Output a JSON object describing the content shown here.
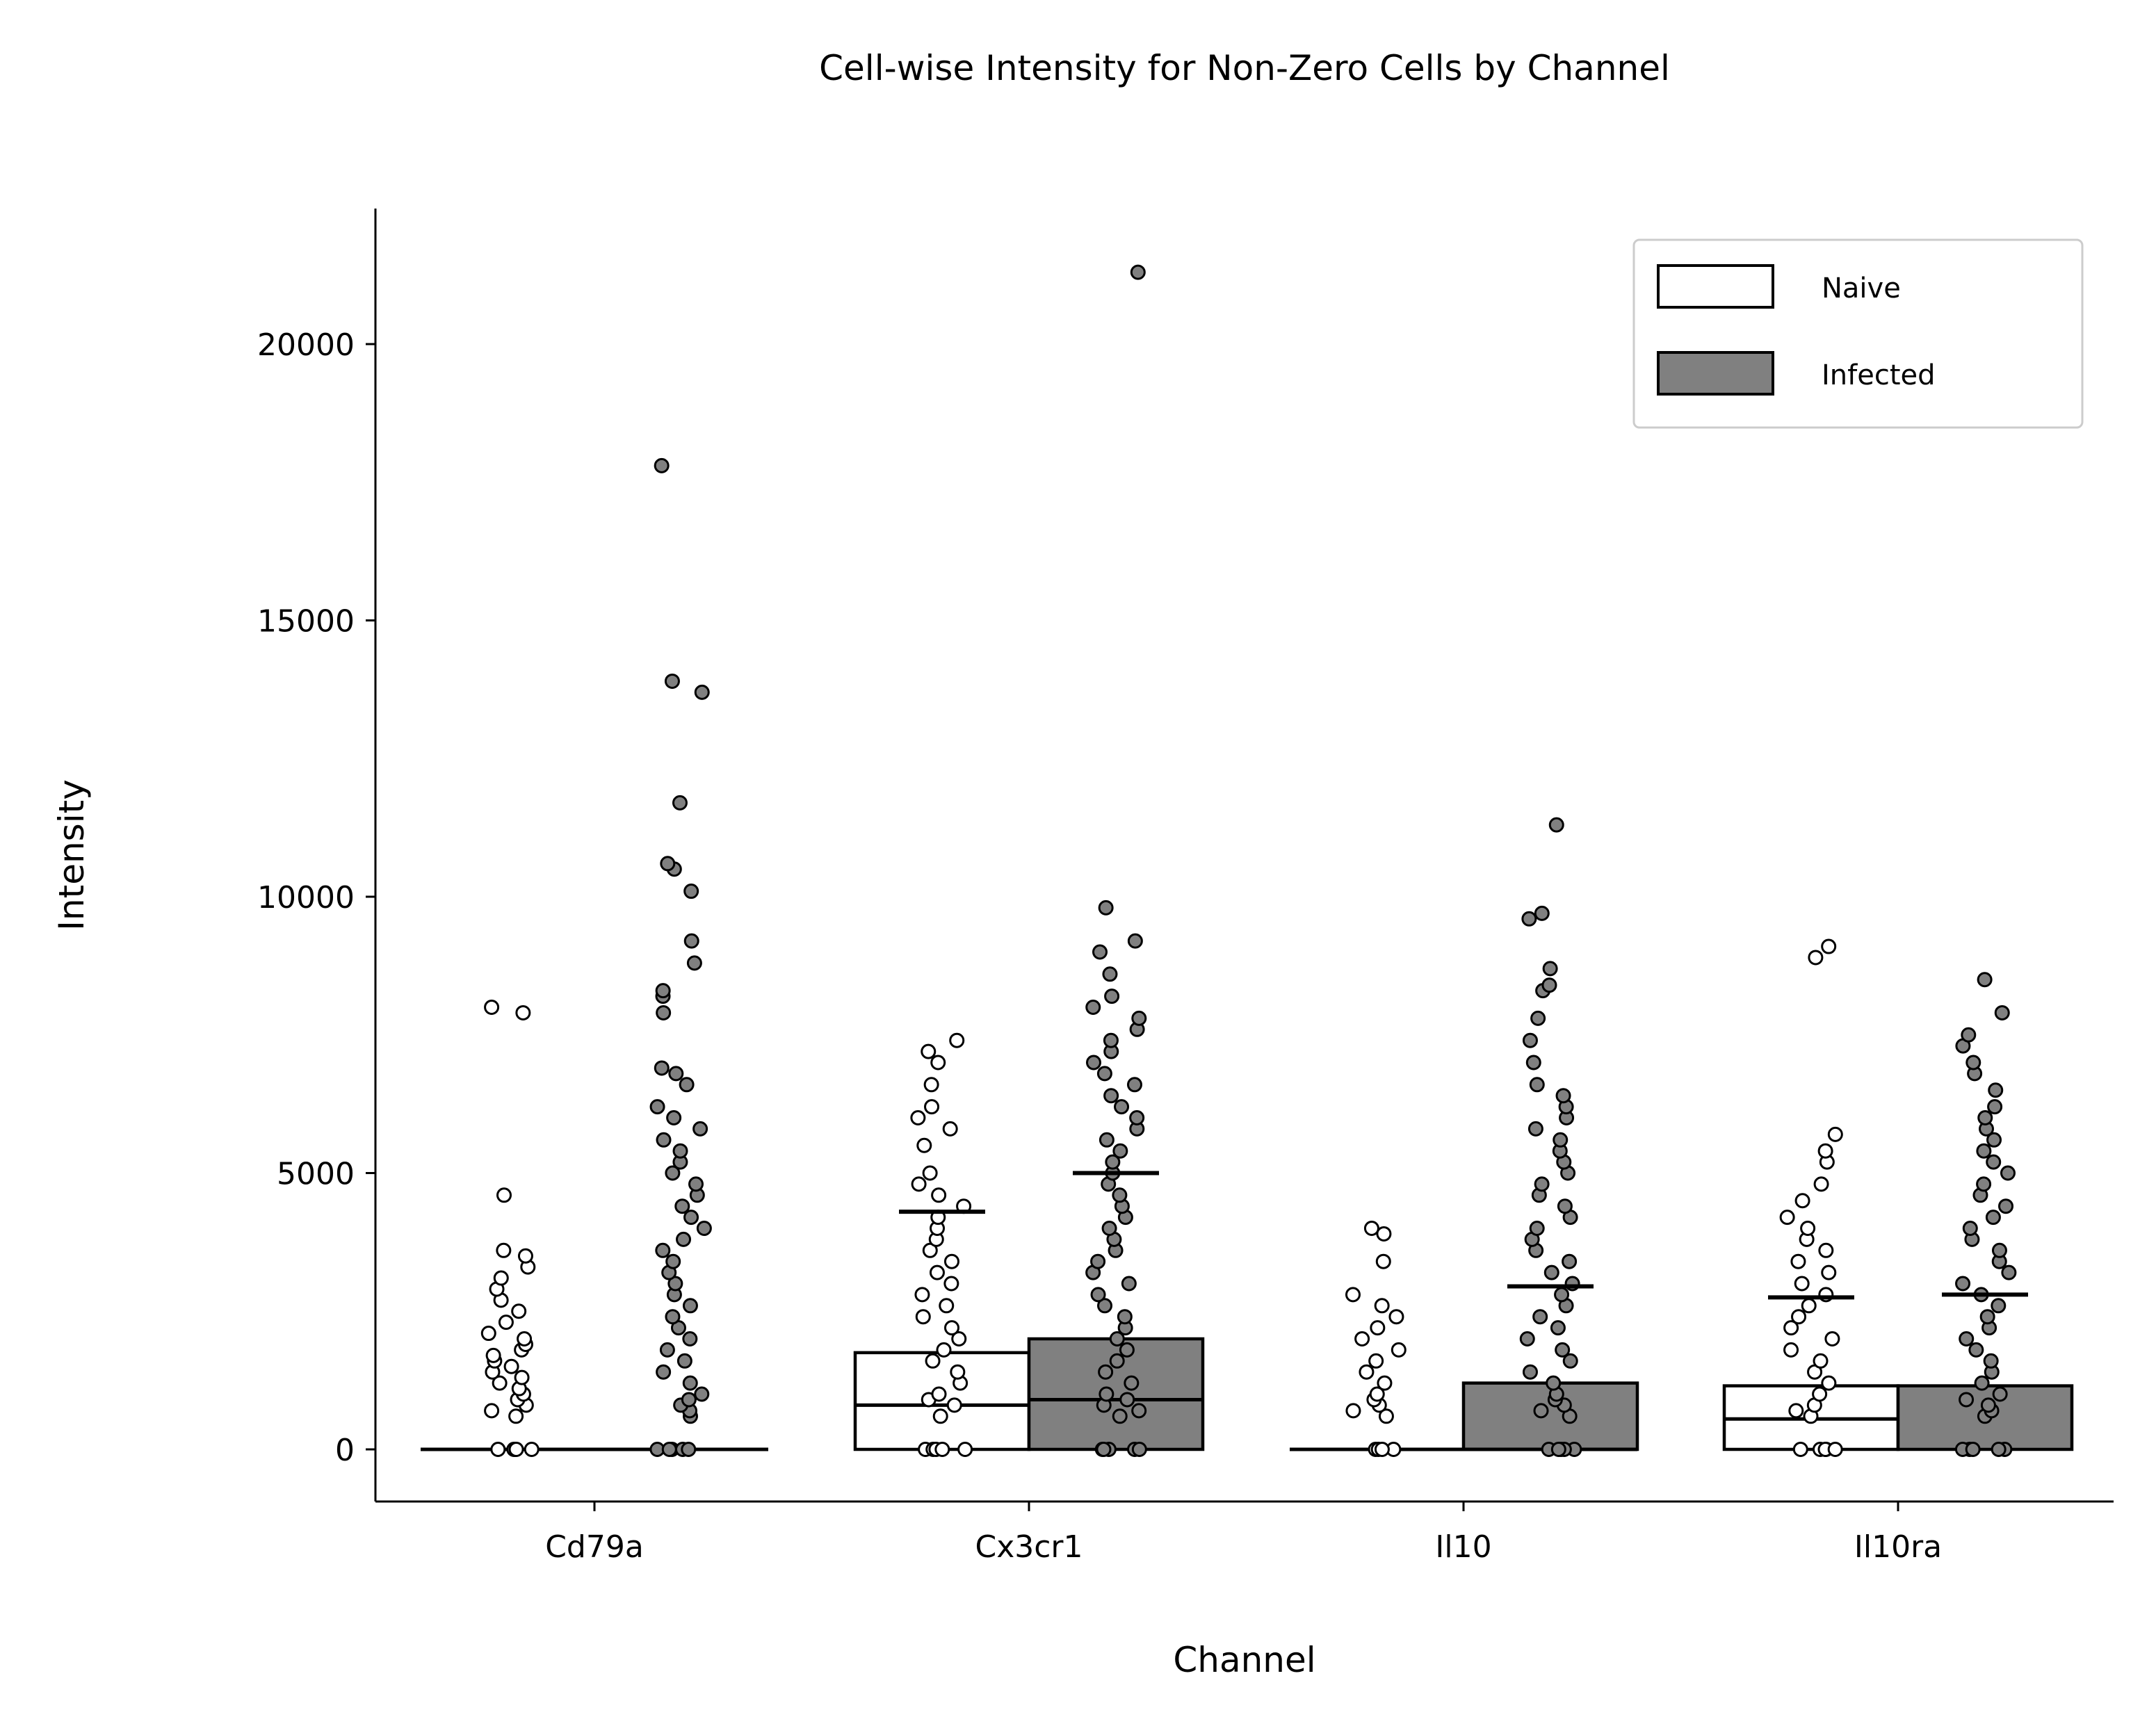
{
  "chart_data": {
    "type": "bar",
    "title": "Cell-wise Intensity for Non-Zero Cells by Channel",
    "xlabel": "Channel",
    "ylabel": "Intensity",
    "categories": [
      "Cd79a",
      "Cx3cr1",
      "Il10",
      "Il10ra"
    ],
    "ylim": [
      -1000,
      22500
    ],
    "yticks": [
      0,
      5000,
      10000,
      15000,
      20000
    ],
    "yticklabels": [
      "0",
      "5000",
      "10000",
      "15000",
      "20000"
    ],
    "grid": false,
    "legend_position": "top-right",
    "series": [
      {
        "name": "Naive",
        "color": "#ffffff",
        "bar_values": [
          0,
          1750,
          0,
          1150
        ],
        "median_lines": [
          0,
          800,
          0,
          550
        ],
        "upper_lines": [
          0,
          4300,
          0,
          2750
        ],
        "points": [
          [
            0,
            0,
            0,
            0,
            0,
            600,
            700,
            800,
            900,
            1000,
            1100,
            1200,
            1300,
            1400,
            1500,
            1600,
            1700,
            1800,
            1900,
            2000,
            2100,
            2300,
            2500,
            2700,
            2900,
            3100,
            3300,
            3500,
            3600,
            4600,
            7900,
            8000
          ],
          [
            0,
            0,
            0,
            0,
            0,
            600,
            800,
            900,
            1000,
            1200,
            1400,
            1600,
            1800,
            2000,
            2200,
            2400,
            2600,
            2800,
            3000,
            3200,
            3400,
            3600,
            3800,
            4000,
            4200,
            4400,
            4600,
            4800,
            5000,
            5500,
            5800,
            6000,
            6200,
            6600,
            7000,
            7200,
            7400
          ],
          [
            0,
            0,
            0,
            0,
            600,
            700,
            800,
            900,
            1000,
            1200,
            1400,
            1600,
            1800,
            2000,
            2200,
            2400,
            2600,
            2800,
            3400,
            3900,
            4000
          ],
          [
            0,
            0,
            0,
            0,
            0,
            600,
            700,
            800,
            1000,
            1200,
            1400,
            1600,
            1800,
            2000,
            2200,
            2400,
            2600,
            2800,
            3000,
            3200,
            3400,
            3600,
            3800,
            4000,
            4200,
            4500,
            4800,
            5200,
            5400,
            5700,
            8900,
            9100
          ]
        ]
      },
      {
        "name": "Infected",
        "color": "#808080",
        "bar_values": [
          0,
          2000,
          1200,
          1150
        ],
        "median_lines": [
          0,
          900,
          null,
          null
        ],
        "upper_lines": [
          0,
          5000,
          2950,
          2800
        ],
        "points": [
          [
            0,
            0,
            0,
            0,
            0,
            600,
            700,
            800,
            900,
            1000,
            1200,
            1400,
            1600,
            1800,
            2000,
            2200,
            2400,
            2600,
            2800,
            3000,
            3200,
            3400,
            3600,
            3800,
            4000,
            4200,
            4400,
            4600,
            4800,
            5000,
            5200,
            5400,
            5600,
            5800,
            6000,
            6200,
            6600,
            6800,
            6900,
            7900,
            8200,
            8300,
            8800,
            9200,
            10100,
            10500,
            10600,
            11700,
            13700,
            13900,
            17800
          ],
          [
            0,
            0,
            0,
            0,
            0,
            600,
            700,
            800,
            900,
            1000,
            1200,
            1400,
            1600,
            1800,
            2000,
            2200,
            2400,
            2600,
            2800,
            3000,
            3200,
            3400,
            3600,
            3800,
            4000,
            4200,
            4400,
            4600,
            4800,
            5000,
            5200,
            5400,
            5600,
            5800,
            6000,
            6200,
            6400,
            6600,
            6800,
            7000,
            7200,
            7400,
            7600,
            7800,
            8000,
            8200,
            8600,
            9000,
            9200,
            9800,
            21300
          ],
          [
            0,
            0,
            0,
            0,
            0,
            600,
            700,
            800,
            900,
            1000,
            1200,
            1400,
            1600,
            1800,
            2000,
            2200,
            2400,
            2600,
            2800,
            3000,
            3200,
            3400,
            3600,
            3800,
            4000,
            4200,
            4400,
            4600,
            4800,
            5000,
            5200,
            5400,
            5600,
            5800,
            6000,
            6200,
            6400,
            6600,
            7000,
            7400,
            7800,
            8300,
            8400,
            8700,
            9600,
            9700,
            11300
          ],
          [
            0,
            0,
            0,
            0,
            0,
            600,
            700,
            800,
            900,
            1000,
            1200,
            1400,
            1600,
            1800,
            2000,
            2200,
            2400,
            2600,
            2800,
            3000,
            3200,
            3400,
            3600,
            3800,
            4000,
            4200,
            4400,
            4600,
            4800,
            5000,
            5200,
            5400,
            5600,
            5800,
            6000,
            6200,
            6500,
            6800,
            7000,
            7300,
            7500,
            7900,
            8500
          ]
        ]
      }
    ]
  }
}
